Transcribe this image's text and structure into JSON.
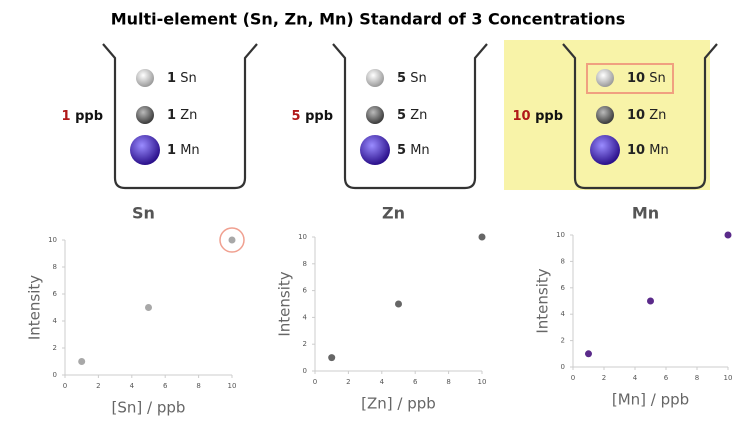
{
  "title": "Multi-element (Sn, Zn, Mn) Standard of 3 Concentrations",
  "beakers": [
    {
      "concentration": "1",
      "unit": "ppb",
      "items": [
        {
          "amount": "1",
          "element": "Sn"
        },
        {
          "amount": "1",
          "element": "Zn"
        },
        {
          "amount": "1",
          "element": "Mn"
        }
      ]
    },
    {
      "concentration": "5",
      "unit": "ppb",
      "items": [
        {
          "amount": "5",
          "element": "Sn"
        },
        {
          "amount": "5",
          "element": "Zn"
        },
        {
          "amount": "5",
          "element": "Mn"
        }
      ]
    },
    {
      "concentration": "10",
      "unit": "ppb",
      "items": [
        {
          "amount": "10",
          "element": "Sn"
        },
        {
          "amount": "10",
          "element": "Zn"
        },
        {
          "amount": "10",
          "element": "Mn"
        }
      ]
    }
  ],
  "chart_data": [
    {
      "type": "scatter",
      "title": "Sn",
      "x_label": "[Sn] / ppb",
      "y_label": "Intensity",
      "x": [
        1,
        5,
        10
      ],
      "values": [
        1,
        5,
        10
      ],
      "color": "#a8a8a8",
      "xlim": [
        0,
        10
      ],
      "ylim": [
        0,
        10
      ],
      "xticks": [
        0,
        2,
        4,
        6,
        8,
        10
      ],
      "yticks": [
        0,
        2,
        4,
        6,
        8,
        10
      ]
    },
    {
      "type": "scatter",
      "title": "Zn",
      "x_label": "[Zn] / ppb",
      "y_label": "Intensity",
      "x": [
        1,
        5,
        10
      ],
      "values": [
        1,
        5,
        10
      ],
      "color": "#666666",
      "xlim": [
        0,
        10
      ],
      "ylim": [
        0,
        10
      ],
      "xticks": [
        0,
        2,
        4,
        6,
        8,
        10
      ],
      "yticks": [
        0,
        2,
        4,
        6,
        8,
        10
      ]
    },
    {
      "type": "scatter",
      "title": "Mn",
      "x_label": "[Mn] / ppb",
      "y_label": "Intensity",
      "x": [
        1,
        5,
        10
      ],
      "values": [
        1,
        5,
        10
      ],
      "color": "#5a2a8a",
      "xlim": [
        0,
        10
      ],
      "ylim": [
        0,
        10
      ],
      "xticks": [
        0,
        2,
        4,
        6,
        8,
        10
      ],
      "yticks": [
        0,
        2,
        4,
        6,
        8,
        10
      ]
    }
  ]
}
